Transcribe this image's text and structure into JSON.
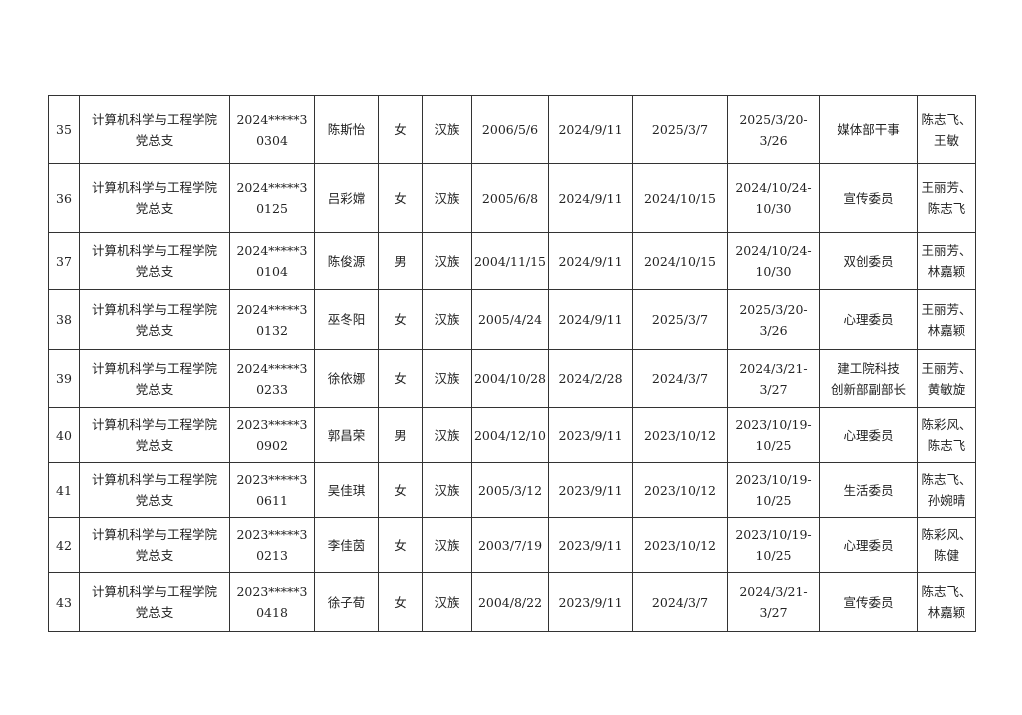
{
  "rows": [
    {
      "no": "35",
      "org": [
        "计算机科学与工程学院",
        "党总支"
      ],
      "id": [
        "2024*****3",
        "0304"
      ],
      "name": "陈斯怡",
      "gender": "女",
      "ethnicity": "汉族",
      "birth": "2006/5/6",
      "enroll": "2024/9/11",
      "apply": "2025/3/7",
      "period": [
        "2025/3/20-",
        "3/26"
      ],
      "role": [
        "媒体部干事"
      ],
      "contacts": [
        "陈志飞、",
        "王敏"
      ]
    },
    {
      "no": "36",
      "org": [
        "计算机科学与工程学院",
        "党总支"
      ],
      "id": [
        "2024*****3",
        "0125"
      ],
      "name": "吕彩嫦",
      "gender": "女",
      "ethnicity": "汉族",
      "birth": "2005/6/8",
      "enroll": "2024/9/11",
      "apply": "2024/10/15",
      "period": [
        "2024/10/24-",
        "10/30"
      ],
      "role": [
        "宣传委员"
      ],
      "contacts": [
        "王丽芳、",
        "陈志飞"
      ]
    },
    {
      "no": "37",
      "org": [
        "计算机科学与工程学院",
        "党总支"
      ],
      "id": [
        "2024*****3",
        "0104"
      ],
      "name": "陈俊源",
      "gender": "男",
      "ethnicity": "汉族",
      "birth": "2004/11/15",
      "enroll": "2024/9/11",
      "apply": "2024/10/15",
      "period": [
        "2024/10/24-",
        "10/30"
      ],
      "role": [
        "双创委员"
      ],
      "contacts": [
        "王丽芳、",
        "林嘉颖"
      ]
    },
    {
      "no": "38",
      "org": [
        "计算机科学与工程学院",
        "党总支"
      ],
      "id": [
        "2024*****3",
        "0132"
      ],
      "name": "巫冬阳",
      "gender": "女",
      "ethnicity": "汉族",
      "birth": "2005/4/24",
      "enroll": "2024/9/11",
      "apply": "2025/3/7",
      "period": [
        "2025/3/20-",
        "3/26"
      ],
      "role": [
        "心理委员"
      ],
      "contacts": [
        "王丽芳、",
        "林嘉颖"
      ]
    },
    {
      "no": "39",
      "org": [
        "计算机科学与工程学院",
        "党总支"
      ],
      "id": [
        "2024*****3",
        "0233"
      ],
      "name": "徐依娜",
      "gender": "女",
      "ethnicity": "汉族",
      "birth": "2004/10/28",
      "enroll": "2024/2/28",
      "apply": "2024/3/7",
      "period": [
        "2024/3/21-",
        "3/27"
      ],
      "role": [
        "建工院科技",
        "创新部副部长"
      ],
      "contacts": [
        "王丽芳、",
        "黄敏旋"
      ]
    },
    {
      "no": "40",
      "org": [
        "计算机科学与工程学院",
        "党总支"
      ],
      "id": [
        "2023*****3",
        "0902"
      ],
      "name": "郭昌荣",
      "gender": "男",
      "ethnicity": "汉族",
      "birth": "2004/12/10",
      "enroll": "2023/9/11",
      "apply": "2023/10/12",
      "period": [
        "2023/10/19-",
        "10/25"
      ],
      "role": [
        "心理委员"
      ],
      "contacts": [
        "陈彩风、",
        "陈志飞"
      ]
    },
    {
      "no": "41",
      "org": [
        "计算机科学与工程学院",
        "党总支"
      ],
      "id": [
        "2023*****3",
        "0611"
      ],
      "name": "吴佳琪",
      "gender": "女",
      "ethnicity": "汉族",
      "birth": "2005/3/12",
      "enroll": "2023/9/11",
      "apply": "2023/10/12",
      "period": [
        "2023/10/19-",
        "10/25"
      ],
      "role": [
        "生活委员"
      ],
      "contacts": [
        "陈志飞、",
        "孙婉晴"
      ]
    },
    {
      "no": "42",
      "org": [
        "计算机科学与工程学院",
        "党总支"
      ],
      "id": [
        "2023*****3",
        "0213"
      ],
      "name": "李佳茵",
      "gender": "女",
      "ethnicity": "汉族",
      "birth": "2003/7/19",
      "enroll": "2023/9/11",
      "apply": "2023/10/12",
      "period": [
        "2023/10/19-",
        "10/25"
      ],
      "role": [
        "心理委员"
      ],
      "contacts": [
        "陈彩风、",
        "陈健"
      ]
    },
    {
      "no": "43",
      "org": [
        "计算机科学与工程学院",
        "党总支"
      ],
      "id": [
        "2023*****3",
        "0418"
      ],
      "name": "徐子荀",
      "gender": "女",
      "ethnicity": "汉族",
      "birth": "2004/8/22",
      "enroll": "2023/9/11",
      "apply": "2024/3/7",
      "period": [
        "2024/3/21-",
        "3/27"
      ],
      "role": [
        "宣传委员"
      ],
      "contacts": [
        "陈志飞、",
        "林嘉颖"
      ]
    }
  ]
}
